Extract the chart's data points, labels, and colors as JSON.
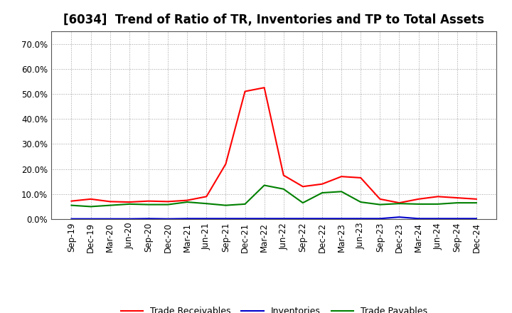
{
  "title": "[6034]  Trend of Ratio of TR, Inventories and TP to Total Assets",
  "x_labels": [
    "Sep-19",
    "Dec-19",
    "Mar-20",
    "Jun-20",
    "Sep-20",
    "Dec-20",
    "Mar-21",
    "Jun-21",
    "Sep-21",
    "Dec-21",
    "Mar-22",
    "Jun-22",
    "Sep-22",
    "Dec-22",
    "Mar-23",
    "Jun-23",
    "Sep-23",
    "Dec-23",
    "Mar-24",
    "Jun-24",
    "Sep-24",
    "Dec-24"
  ],
  "trade_receivables": [
    0.072,
    0.08,
    0.07,
    0.068,
    0.072,
    0.07,
    0.075,
    0.09,
    0.22,
    0.51,
    0.525,
    0.175,
    0.13,
    0.14,
    0.17,
    0.165,
    0.08,
    0.065,
    0.08,
    0.09,
    0.085,
    0.08
  ],
  "inventories": [
    0.001,
    0.001,
    0.001,
    0.001,
    0.002,
    0.001,
    0.002,
    0.002,
    0.002,
    0.002,
    0.002,
    0.002,
    0.002,
    0.002,
    0.002,
    0.002,
    0.002,
    0.008,
    0.002,
    0.002,
    0.002,
    0.002
  ],
  "trade_payables": [
    0.055,
    0.05,
    0.055,
    0.06,
    0.058,
    0.058,
    0.068,
    0.062,
    0.055,
    0.06,
    0.135,
    0.12,
    0.065,
    0.105,
    0.11,
    0.068,
    0.058,
    0.062,
    0.06,
    0.06,
    0.065,
    0.065
  ],
  "line_colors": {
    "trade_receivables": "#ff0000",
    "inventories": "#0000cc",
    "trade_payables": "#008000"
  },
  "ylim": [
    0.0,
    0.75
  ],
  "yticks": [
    0.0,
    0.1,
    0.2,
    0.3,
    0.4,
    0.5,
    0.6,
    0.7
  ],
  "background_color": "#ffffff",
  "grid_color": "#888888",
  "legend_labels": [
    "Trade Receivables",
    "Inventories",
    "Trade Payables"
  ],
  "title_fontsize": 12,
  "tick_fontsize": 8.5
}
